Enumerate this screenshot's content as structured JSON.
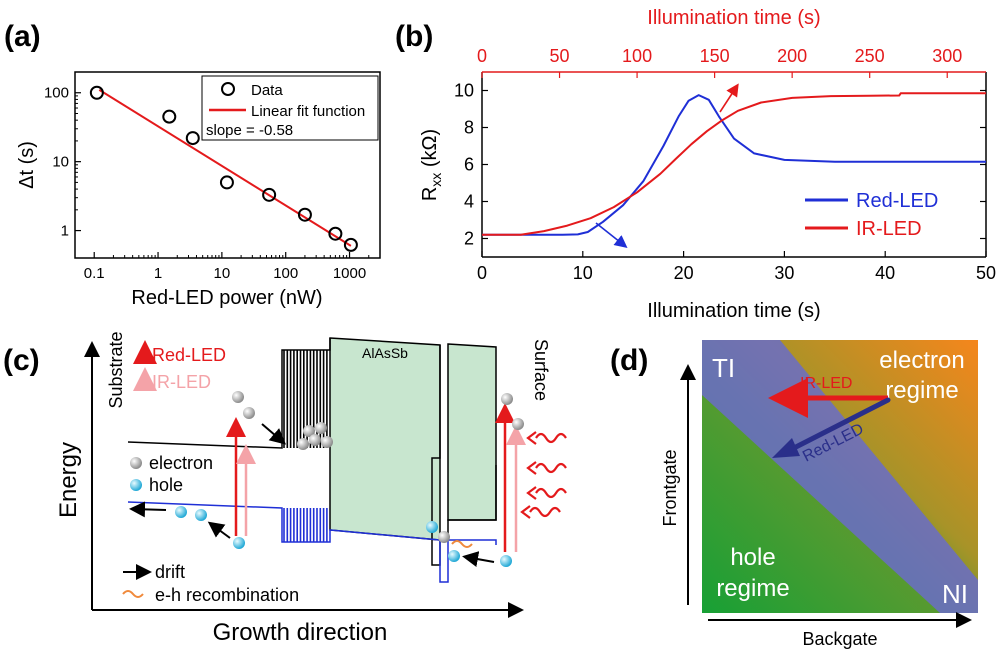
{
  "panels": {
    "a": {
      "label": "(a)"
    },
    "b": {
      "label": "(b)"
    },
    "c": {
      "label": "(c)"
    },
    "d": {
      "label": "(d)"
    }
  },
  "chart_data": [
    {
      "id": "a",
      "type": "scatter",
      "title": "",
      "xlabel": "Red-LED power (nW)",
      "ylabel": "Δt (s)",
      "xscale": "log",
      "yscale": "log",
      "xlim": [
        0.05,
        3000
      ],
      "ylim": [
        0.4,
        200
      ],
      "x_ticks": [
        {
          "v": 0.1,
          "label": "0.1"
        },
        {
          "v": 1,
          "label": "1"
        },
        {
          "v": 10,
          "label": "10"
        },
        {
          "v": 100,
          "label": "100"
        },
        {
          "v": 1000,
          "label": "1000"
        }
      ],
      "y_ticks": [
        {
          "v": 1,
          "label": "1"
        },
        {
          "v": 10,
          "label": "10"
        },
        {
          "v": 100,
          "label": "100"
        }
      ],
      "series": [
        {
          "name": "Data",
          "kind": "points",
          "color": "#000000",
          "x": [
            0.11,
            1.5,
            3.5,
            12,
            55,
            200,
            600,
            1050
          ],
          "y": [
            100,
            45,
            22,
            5.0,
            3.3,
            1.7,
            0.9,
            0.62
          ]
        },
        {
          "name": "Linear fit function",
          "kind": "line",
          "color": "#e41a1c",
          "x": [
            0.12,
            1050
          ],
          "y": [
            110,
            0.6
          ]
        }
      ],
      "legend": {
        "position": "top-right",
        "annotation": "slope = -0.58"
      },
      "grid": false
    },
    {
      "id": "b",
      "type": "line",
      "title": "",
      "xlabel": "Illumination time (s)",
      "x2label": "Illumination time (s)",
      "ylabel": "R",
      "ylabel_sub": "xx",
      "ylabel_unit": " (kΩ)",
      "xlim": [
        0,
        50
      ],
      "x2lim": [
        0,
        325
      ],
      "ylim": [
        1,
        11
      ],
      "x_ticks": [
        0,
        10,
        20,
        30,
        40,
        50
      ],
      "x2_ticks": [
        0,
        50,
        100,
        150,
        200,
        250,
        300
      ],
      "y_ticks": [
        2,
        4,
        6,
        8,
        10
      ],
      "series": [
        {
          "name": "Red-LED",
          "axis": "bottom",
          "color": "#1f2fd6",
          "x": [
            0,
            2,
            4,
            6,
            8,
            9.5,
            10.5,
            12,
            14,
            16,
            18,
            19.5,
            20.5,
            21.5,
            22.5,
            23.5,
            25,
            27,
            30,
            35,
            40,
            45,
            50
          ],
          "y": [
            2.2,
            2.2,
            2.2,
            2.2,
            2.2,
            2.22,
            2.35,
            2.9,
            3.8,
            5.1,
            7.0,
            8.6,
            9.45,
            9.75,
            9.5,
            8.6,
            7.4,
            6.6,
            6.25,
            6.15,
            6.15,
            6.15,
            6.15
          ]
        },
        {
          "name": "IR-LED",
          "axis": "top",
          "color": "#e41a1c",
          "x": [
            0,
            10,
            25,
            40,
            55,
            70,
            85,
            100,
            115,
            125,
            135,
            145,
            155,
            165,
            180,
            200,
            225,
            250,
            269,
            270,
            290,
            325
          ],
          "y": [
            2.2,
            2.2,
            2.2,
            2.4,
            2.7,
            3.1,
            3.7,
            4.5,
            5.5,
            6.3,
            7.1,
            7.8,
            8.4,
            8.9,
            9.35,
            9.6,
            9.7,
            9.72,
            9.73,
            9.85,
            9.85,
            9.85
          ]
        }
      ],
      "legend": {
        "position": "bottom-right"
      },
      "grid": false
    }
  ],
  "panel_c": {
    "ylabel": "Energy",
    "xlabel": "Growth direction",
    "substrate": "Substrate",
    "surface": "Surface",
    "barrier": "AlAsSb",
    "legend_red": "Red-LED",
    "legend_ir": "IR-LED",
    "electron": "electron",
    "hole": "hole",
    "drift": "drift",
    "recombination": "e-h recombination",
    "colors": {
      "red": "#e41a1c",
      "pink": "#f4a3a8",
      "barrier": "#c8e6cf",
      "valence": "#1f2fd6"
    }
  },
  "panel_d": {
    "xlabel": "Backgate",
    "ylabel": "Frontgate",
    "ti": "TI",
    "ni": "NI",
    "electron_regime": [
      "electron",
      "regime"
    ],
    "hole_regime": [
      "hole",
      "regime"
    ],
    "ir_arrow": "IR-LED",
    "red_arrow": "Red-LED",
    "colors": {
      "green": "#1d9a3c",
      "orange": "#f08a1c",
      "wedge": "#6a6cc8",
      "red": "#e41a1c",
      "navy": "#2a2f8a"
    }
  }
}
